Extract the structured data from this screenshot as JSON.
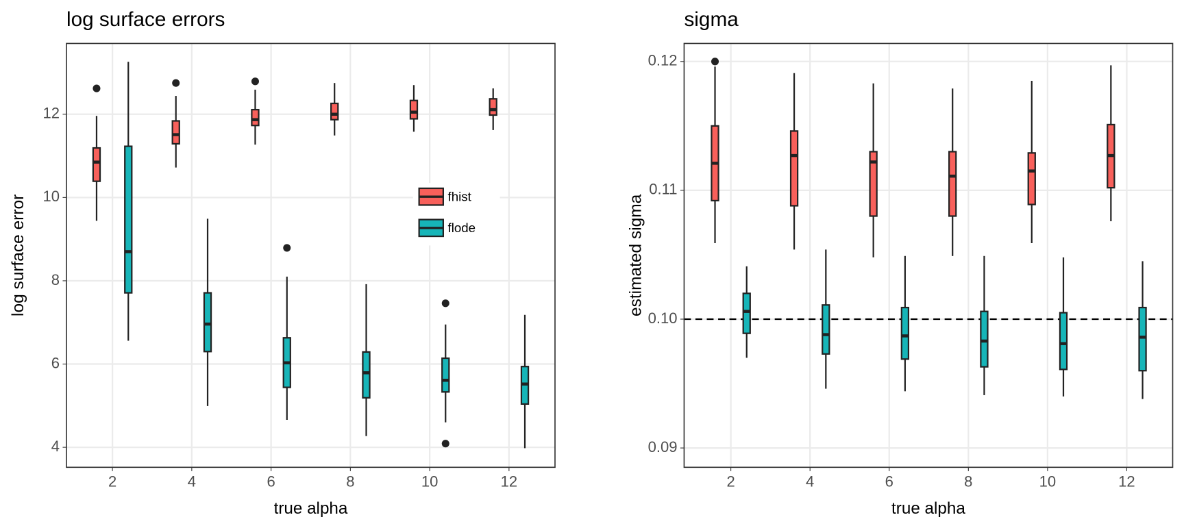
{
  "chart_data": [
    {
      "type": "box",
      "title": "log surface errors",
      "xlabel": "true alpha",
      "ylabel": "log surface error",
      "xlim": [
        0.84,
        13.16
      ],
      "ylim": [
        3.52,
        13.7
      ],
      "xticks": [
        2,
        4,
        6,
        8,
        10,
        12
      ],
      "yticks": [
        4,
        6,
        8,
        10,
        12
      ],
      "grid": true,
      "legend": "right",
      "series": [
        {
          "name": "fhist",
          "color": "#f8605b",
          "values": [
            {
              "min": 9.44,
              "q1": 10.39,
              "median": 10.85,
              "q3": 11.19,
              "max": 11.96,
              "outliers": [
                12.62
              ]
            },
            {
              "min": 10.72,
              "q1": 11.29,
              "median": 11.51,
              "q3": 11.84,
              "max": 12.44,
              "outliers": [
                12.75
              ]
            },
            {
              "min": 11.27,
              "q1": 11.73,
              "median": 11.87,
              "q3": 12.11,
              "max": 12.59,
              "outliers": [
                12.79
              ]
            },
            {
              "min": 11.49,
              "q1": 11.87,
              "median": 12.0,
              "q3": 12.26,
              "max": 12.75,
              "outliers": []
            },
            {
              "min": 11.58,
              "q1": 11.89,
              "median": 12.05,
              "q3": 12.33,
              "max": 12.7,
              "outliers": []
            },
            {
              "min": 11.62,
              "q1": 11.98,
              "median": 12.11,
              "q3": 12.37,
              "max": 12.62,
              "outliers": []
            }
          ]
        },
        {
          "name": "flode",
          "color": "#17b5b8",
          "values": [
            {
              "min": 6.56,
              "q1": 7.71,
              "median": 8.7,
              "q3": 11.23,
              "max": 13.26,
              "outliers": []
            },
            {
              "min": 4.99,
              "q1": 6.3,
              "median": 6.96,
              "q3": 7.71,
              "max": 9.49,
              "outliers": []
            },
            {
              "min": 4.66,
              "q1": 5.44,
              "median": 6.03,
              "q3": 6.63,
              "max": 8.1,
              "outliers": [
                8.79
              ]
            },
            {
              "min": 4.27,
              "q1": 5.19,
              "median": 5.79,
              "q3": 6.29,
              "max": 7.92,
              "outliers": []
            },
            {
              "min": 4.6,
              "q1": 5.33,
              "median": 5.61,
              "q3": 6.14,
              "max": 6.95,
              "outliers": [
                7.46,
                4.09
              ]
            },
            {
              "min": 3.98,
              "q1": 5.04,
              "median": 5.52,
              "q3": 5.94,
              "max": 7.18,
              "outliers": []
            }
          ]
        }
      ]
    },
    {
      "type": "box",
      "title": "sigma",
      "xlabel": "true alpha",
      "ylabel": "estimated sigma",
      "xlim": [
        0.82,
        13.16
      ],
      "ylim": [
        0.0885,
        0.1214
      ],
      "xticks": [
        2,
        4,
        6,
        8,
        10,
        12
      ],
      "yticks": [
        0.09,
        {
          "value": 0.1,
          "label": "0.10"
        },
        0.11,
        0.12
      ],
      "grid": true,
      "hline": 0.1,
      "series": [
        {
          "color": "#f8605b",
          "values": [
            {
              "min": 0.1059,
              "q1": 0.1092,
              "median": 0.1121,
              "q3": 0.115,
              "max": 0.1196,
              "outliers": [
                0.12
              ]
            },
            {
              "min": 0.1054,
              "q1": 0.1088,
              "median": 0.1127,
              "q3": 0.1146,
              "max": 0.1191,
              "outliers": []
            },
            {
              "min": 0.1048,
              "q1": 0.108,
              "median": 0.1122,
              "q3": 0.113,
              "max": 0.1183,
              "outliers": []
            },
            {
              "min": 0.1049,
              "q1": 0.108,
              "median": 0.1111,
              "q3": 0.113,
              "max": 0.1179,
              "outliers": []
            },
            {
              "min": 0.1059,
              "q1": 0.1089,
              "median": 0.1115,
              "q3": 0.1129,
              "max": 0.1185,
              "outliers": []
            },
            {
              "min": 0.1076,
              "q1": 0.1102,
              "median": 0.1127,
              "q3": 0.1151,
              "max": 0.1197,
              "outliers": []
            }
          ]
        },
        {
          "color": "#17b5b8",
          "values": [
            {
              "min": 0.097,
              "q1": 0.0989,
              "median": 0.1006,
              "q3": 0.102,
              "max": 0.1041,
              "outliers": []
            },
            {
              "min": 0.0946,
              "q1": 0.0973,
              "median": 0.0988,
              "q3": 0.1011,
              "max": 0.1054,
              "outliers": []
            },
            {
              "min": 0.0944,
              "q1": 0.0969,
              "median": 0.0987,
              "q3": 0.1009,
              "max": 0.1049,
              "outliers": []
            },
            {
              "min": 0.0941,
              "q1": 0.0963,
              "median": 0.0983,
              "q3": 0.1006,
              "max": 0.1049,
              "outliers": []
            },
            {
              "min": 0.094,
              "q1": 0.0961,
              "median": 0.0981,
              "q3": 0.1005,
              "max": 0.1048,
              "outliers": []
            },
            {
              "min": 0.0938,
              "q1": 0.096,
              "median": 0.0986,
              "q3": 0.1009,
              "max": 0.1045,
              "outliers": []
            }
          ]
        }
      ]
    }
  ]
}
